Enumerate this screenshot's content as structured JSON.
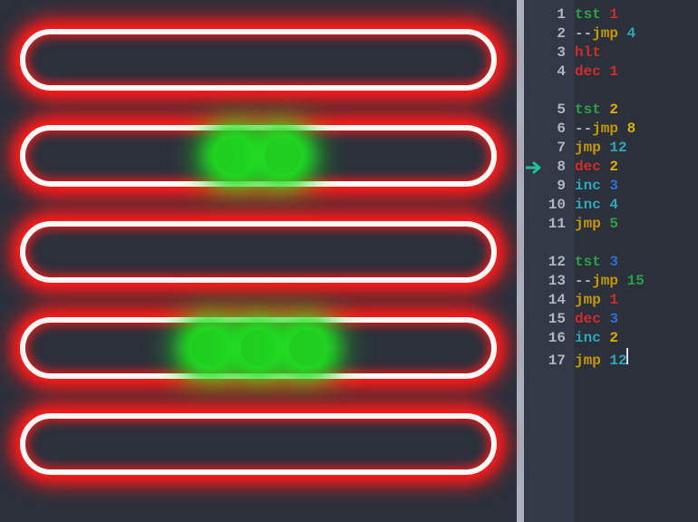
{
  "colors": {
    "background": "#2b303b",
    "gutter": "#323846",
    "divider": "#aab0bc",
    "line_number": "#aeb6c4",
    "register_border": "#fff8f4",
    "register_glow": "#ff1a1a",
    "ball_fill": "#1fce1f",
    "ball_glow": "#22e022",
    "arrow": "#1fbf99",
    "cursor": "#dfe3ea",
    "ops": {
      "tst": "#2aa047",
      "jmp": "#c29a00",
      "hlt": "#d12c2c",
      "dec": "#d12c2c",
      "inc": "#2fa6b9",
      "dash": "#a7adba"
    },
    "nums": {
      "1": "#d12c2c",
      "2": "#d9b000",
      "3": "#2f6fd0",
      "4": "#2fa6b9",
      "5": "#2aa047",
      "8": "#d9b000",
      "12": "#2fa6b9",
      "15": "#2aa047"
    }
  },
  "registers": [
    {
      "balls": 0
    },
    {
      "balls": 2
    },
    {
      "balls": 0
    },
    {
      "balls": 3
    },
    {
      "balls": 0
    }
  ],
  "current_line": 8,
  "cursor_line": 17,
  "code": [
    {
      "n": 1,
      "tokens": [
        [
          "op-tst",
          "tst"
        ],
        [
          "sp",
          " "
        ],
        [
          "num-red",
          "1"
        ]
      ]
    },
    {
      "n": 2,
      "tokens": [
        [
          "op-dash",
          "--"
        ],
        [
          "op-jmp",
          "jmp"
        ],
        [
          "sp",
          " "
        ],
        [
          "num-cyan",
          "4"
        ]
      ]
    },
    {
      "n": 3,
      "tokens": [
        [
          "op-hlt",
          "hlt"
        ]
      ]
    },
    {
      "n": 4,
      "tokens": [
        [
          "op-dec",
          "dec"
        ],
        [
          "sp",
          " "
        ],
        [
          "num-red",
          "1"
        ]
      ]
    },
    {
      "gap": true
    },
    {
      "n": 5,
      "tokens": [
        [
          "op-tst",
          "tst"
        ],
        [
          "sp",
          " "
        ],
        [
          "num-yellow",
          "2"
        ]
      ]
    },
    {
      "n": 6,
      "tokens": [
        [
          "op-dash",
          "--"
        ],
        [
          "op-jmp",
          "jmp"
        ],
        [
          "sp",
          " "
        ],
        [
          "num-yellow",
          "8"
        ]
      ]
    },
    {
      "n": 7,
      "tokens": [
        [
          "op-jmp",
          "jmp"
        ],
        [
          "sp",
          " "
        ],
        [
          "num-cyan",
          "12"
        ]
      ]
    },
    {
      "n": 8,
      "tokens": [
        [
          "op-dec",
          "dec"
        ],
        [
          "sp",
          " "
        ],
        [
          "num-yellow",
          "2"
        ]
      ]
    },
    {
      "n": 9,
      "tokens": [
        [
          "op-inc",
          "inc"
        ],
        [
          "sp",
          " "
        ],
        [
          "num-blue",
          "3"
        ]
      ]
    },
    {
      "n": 10,
      "tokens": [
        [
          "op-inc",
          "inc"
        ],
        [
          "sp",
          " "
        ],
        [
          "num-cyan",
          "4"
        ]
      ]
    },
    {
      "n": 11,
      "tokens": [
        [
          "op-jmp",
          "jmp"
        ],
        [
          "sp",
          " "
        ],
        [
          "num-green",
          "5"
        ]
      ]
    },
    {
      "gap": true
    },
    {
      "n": 12,
      "tokens": [
        [
          "op-tst",
          "tst"
        ],
        [
          "sp",
          " "
        ],
        [
          "num-blue",
          "3"
        ]
      ]
    },
    {
      "n": 13,
      "tokens": [
        [
          "op-dash",
          "--"
        ],
        [
          "op-jmp",
          "jmp"
        ],
        [
          "sp",
          " "
        ],
        [
          "num-green",
          "15"
        ]
      ]
    },
    {
      "n": 14,
      "tokens": [
        [
          "op-jmp",
          "jmp"
        ],
        [
          "sp",
          " "
        ],
        [
          "num-red",
          "1"
        ]
      ]
    },
    {
      "n": 15,
      "tokens": [
        [
          "op-dec",
          "dec"
        ],
        [
          "sp",
          " "
        ],
        [
          "num-blue",
          "3"
        ]
      ]
    },
    {
      "n": 16,
      "tokens": [
        [
          "op-inc",
          "inc"
        ],
        [
          "sp",
          " "
        ],
        [
          "num-yellow",
          "2"
        ]
      ]
    },
    {
      "n": 17,
      "tokens": [
        [
          "op-jmp",
          "jmp"
        ],
        [
          "sp",
          " "
        ],
        [
          "num-cyan",
          "12"
        ]
      ]
    }
  ]
}
